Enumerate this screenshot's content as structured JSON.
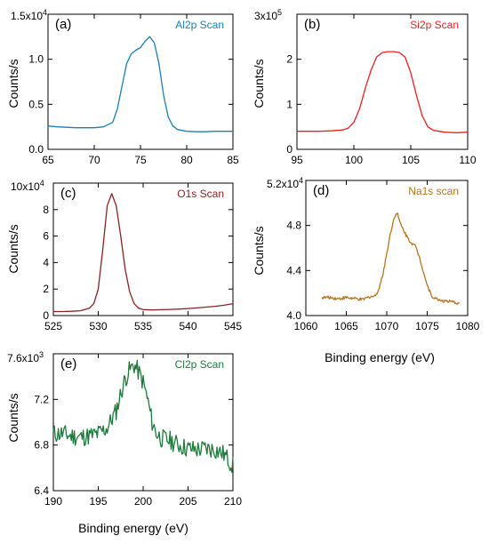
{
  "figure": {
    "xlabel_right": "Binding energy (eV)",
    "xlabel_bottom": "Binding energy (eV)"
  },
  "chart_data": [
    {
      "panel": "(a)",
      "type": "line",
      "title": "Al2p Scan",
      "color": "#1a7fb5",
      "ylabel": "Counts/s",
      "xlabel": "",
      "xlim": [
        65,
        85
      ],
      "ylim": [
        0,
        15000
      ],
      "y_scale_label": "1.5x10",
      "y_scale_exp": "4",
      "xticks": [
        65,
        70,
        75,
        80,
        85
      ],
      "yticks": [
        0,
        5000,
        10000
      ],
      "ytick_labels": [
        "0.0",
        "0.5",
        "1.0"
      ],
      "x": [
        65,
        66,
        67,
        68,
        69,
        70,
        71,
        72,
        72.5,
        73,
        73.5,
        74,
        74.5,
        75,
        75.5,
        76,
        76.5,
        77,
        77.5,
        78,
        78.5,
        79,
        80,
        81,
        82,
        83,
        84,
        85
      ],
      "y": [
        2600,
        2500,
        2450,
        2400,
        2400,
        2400,
        2500,
        3000,
        4500,
        7000,
        9500,
        10600,
        11000,
        11300,
        12000,
        12500,
        11800,
        9500,
        6000,
        3600,
        2600,
        2200,
        2000,
        1950,
        1950,
        2000,
        2000,
        2000
      ]
    },
    {
      "panel": "(b)",
      "type": "line",
      "title": "Si2p Scan",
      "color": "#e82020",
      "ylabel": "Counts/s",
      "xlabel": "",
      "xlim": [
        95,
        110
      ],
      "ylim": [
        0,
        300000
      ],
      "y_scale_label": "3x10",
      "y_scale_exp": "5",
      "xticks": [
        95,
        100,
        105,
        110
      ],
      "yticks": [
        0,
        100000,
        200000
      ],
      "ytick_labels": [
        "0",
        "1",
        "2"
      ],
      "x": [
        95,
        96,
        97,
        98,
        99,
        99.5,
        100,
        100.5,
        101,
        101.5,
        102,
        102.5,
        103,
        103.5,
        104,
        104.5,
        105,
        105.5,
        106,
        106.5,
        107,
        108,
        109,
        110
      ],
      "y": [
        40000,
        40000,
        40000,
        41000,
        43000,
        47000,
        60000,
        90000,
        135000,
        175000,
        205000,
        215000,
        217000,
        217000,
        215000,
        205000,
        170000,
        120000,
        75000,
        50000,
        42000,
        38000,
        37000,
        38000
      ]
    },
    {
      "panel": "(c)",
      "type": "line",
      "title": "O1s Scan",
      "color": "#8b2222",
      "ylabel": "Counts/s",
      "xlabel": "",
      "xlim": [
        525,
        545
      ],
      "ylim": [
        0,
        100000
      ],
      "y_scale_label": "10x10",
      "y_scale_exp": "4",
      "xticks": [
        525,
        530,
        535,
        540,
        545
      ],
      "yticks": [
        0,
        20000,
        40000,
        60000,
        80000
      ],
      "ytick_labels": [
        "0",
        "2",
        "4",
        "6",
        "8"
      ],
      "x": [
        525,
        526,
        527,
        528,
        529,
        529.5,
        530,
        530.5,
        531,
        531.5,
        532,
        532.5,
        533,
        533.5,
        534,
        534.5,
        535,
        536,
        537,
        538,
        539,
        540,
        541,
        542,
        543,
        544,
        545
      ],
      "y": [
        3000,
        3000,
        3200,
        3600,
        5500,
        9000,
        20000,
        50000,
        83000,
        92000,
        83000,
        60000,
        35000,
        18000,
        9000,
        5500,
        4500,
        4200,
        4400,
        4600,
        4900,
        5300,
        5800,
        6400,
        7000,
        7800,
        9000
      ]
    },
    {
      "panel": "(d)",
      "type": "line",
      "title": "Na1s scan",
      "color": "#b8751f",
      "ylabel": "Counts/s",
      "xlabel": "Binding energy (eV)",
      "xlim": [
        1060,
        1080
      ],
      "ylim": [
        40000,
        52000
      ],
      "y_scale_label": "5.2x10",
      "y_scale_exp": "4",
      "xticks": [
        1060,
        1065,
        1070,
        1075,
        1080
      ],
      "yticks": [
        40000,
        44000,
        48000
      ],
      "ytick_labels": [
        "4.0",
        "4.4",
        "4.8"
      ],
      "x": [
        1062,
        1063,
        1064,
        1065,
        1066,
        1067,
        1068,
        1068.5,
        1069,
        1069.5,
        1070,
        1070.5,
        1071,
        1071.3,
        1071.6,
        1072,
        1072.5,
        1073,
        1073.5,
        1074,
        1074.5,
        1075,
        1075.5,
        1076,
        1077,
        1078,
        1079
      ],
      "y": [
        41600,
        41600,
        41500,
        41600,
        41500,
        41400,
        41700,
        41700,
        42300,
        43600,
        45500,
        47500,
        48900,
        49100,
        48300,
        47700,
        47000,
        46500,
        46200,
        45300,
        44000,
        42700,
        41800,
        41500,
        41300,
        41200,
        41100
      ]
    },
    {
      "panel": "(e)",
      "type": "line",
      "title": "Cl2p Scan",
      "color": "#1e7a3a",
      "ylabel": "Counts/s",
      "xlabel": "Binding energy (eV)",
      "xlim": [
        190,
        210
      ],
      "ylim": [
        6400,
        7600
      ],
      "y_scale_label": "7.6x10",
      "y_scale_exp": "3",
      "xticks": [
        190,
        195,
        200,
        205,
        210
      ],
      "yticks": [
        6400,
        6800,
        7200
      ],
      "ytick_labels": [
        "6.4",
        "6.8",
        "7.2"
      ],
      "x": [
        190,
        191,
        192,
        193,
        194,
        195,
        196,
        197,
        197.5,
        198,
        198.5,
        199,
        199.5,
        200,
        200.5,
        201,
        201.5,
        202,
        203,
        204,
        205,
        206,
        207,
        208,
        209,
        210
      ],
      "y": [
        6900,
        6900,
        6880,
        6870,
        6880,
        6900,
        6950,
        7100,
        7250,
        7380,
        7460,
        7500,
        7440,
        7350,
        7200,
        7000,
        6900,
        6860,
        6840,
        6800,
        6770,
        6760,
        6770,
        6760,
        6720,
        6620
      ]
    }
  ]
}
